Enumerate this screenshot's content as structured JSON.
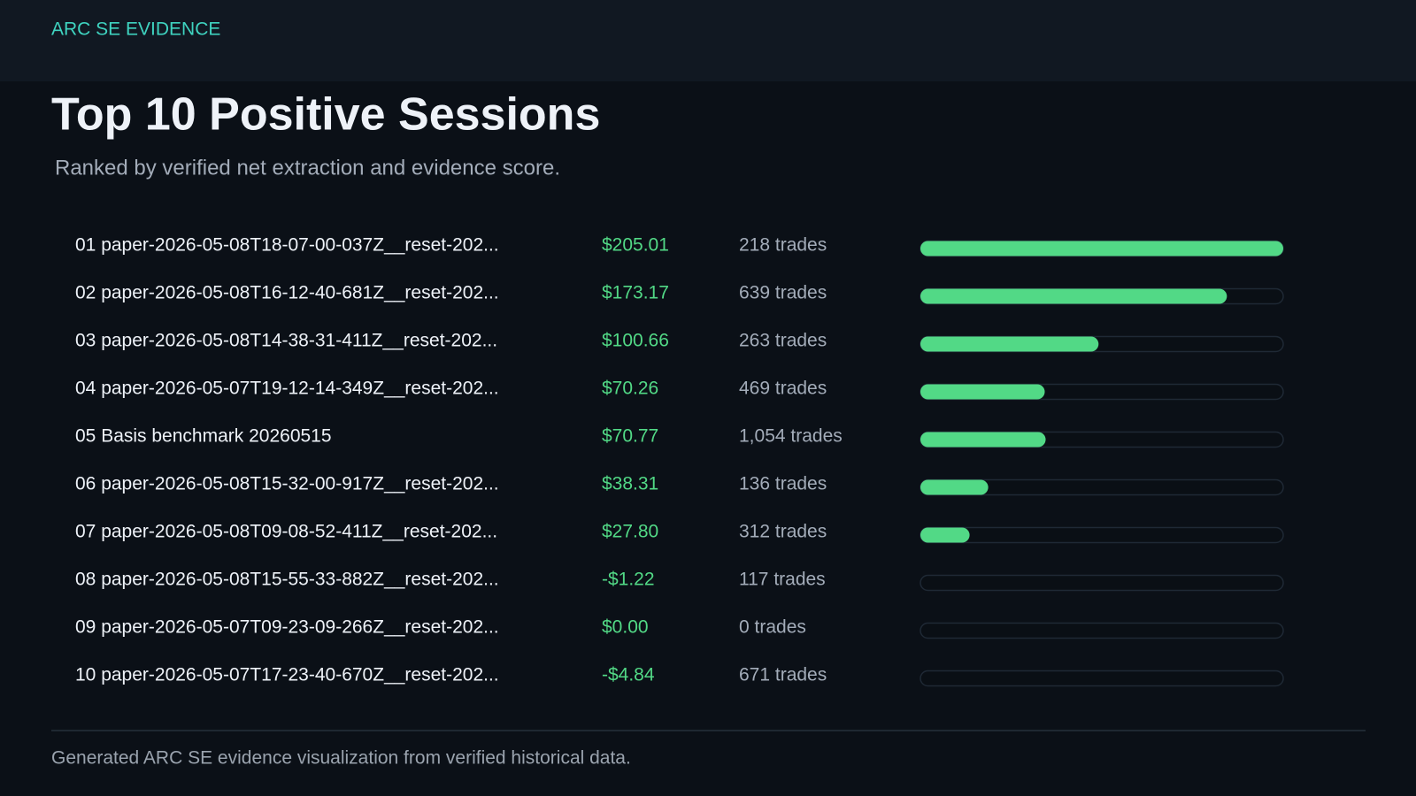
{
  "header": "ARC SE EVIDENCE",
  "chart_data": {
    "type": "bar",
    "orientation": "horizontal",
    "title": "Top 10 Positive Sessions",
    "subtitle": "Ranked by verified net extraction and evidence score.",
    "categories": [
      "01 paper-2026-05-08T18-07-00-037Z__reset-202...",
      "02 paper-2026-05-08T16-12-40-681Z__reset-202...",
      "03 paper-2026-05-08T14-38-31-411Z__reset-202...",
      "04 paper-2026-05-07T19-12-14-349Z__reset-202...",
      "05 Basis benchmark 20260515",
      "06 paper-2026-05-08T15-32-00-917Z__reset-202...",
      "07 paper-2026-05-08T09-08-52-411Z__reset-202...",
      "08 paper-2026-05-08T15-55-33-882Z__reset-202...",
      "09 paper-2026-05-07T09-23-09-266Z__reset-202...",
      "10 paper-2026-05-07T17-23-40-670Z__reset-202..."
    ],
    "values": [
      205.01,
      173.17,
      100.66,
      70.26,
      70.77,
      38.31,
      27.8,
      -1.22,
      0.0,
      -4.84
    ],
    "value_labels": [
      "$205.01",
      "$173.17",
      "$100.66",
      "$70.26",
      "$70.77",
      "$38.31",
      "$27.80",
      "-$1.22",
      "$0.00",
      "-$4.84"
    ],
    "trades_labels": [
      "218 trades",
      "639 trades",
      "263 trades",
      "469 trades",
      "1,054 trades",
      "136 trades",
      "312 trades",
      "117 trades",
      "0 trades",
      "671 trades"
    ],
    "color": "#52d986"
  },
  "footer": "Generated ARC SE evidence visualization from verified historical data."
}
